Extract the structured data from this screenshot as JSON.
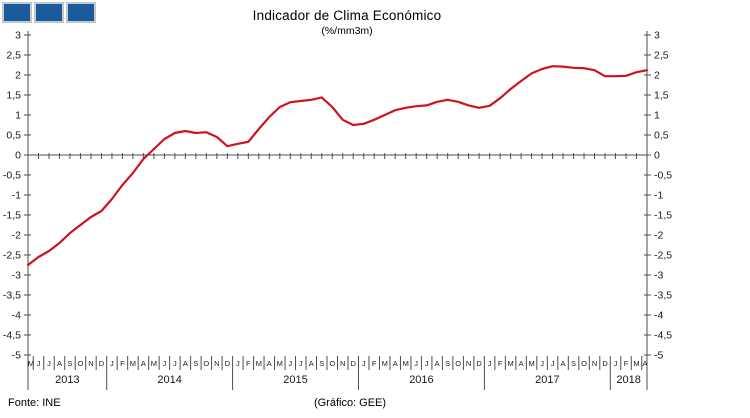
{
  "logo": {
    "square_color": "#1a5b9b",
    "square_border": "#c3c8cc",
    "square_count": 3
  },
  "footer": {
    "source": "Fonte: INE",
    "credit": "(Gráfico:  GEE)"
  },
  "chart_data": {
    "type": "line",
    "title": "Indicador de Clima Económico",
    "subtitle": "(%/mm3m)",
    "xlabel": "",
    "ylabel": "",
    "ylim": [
      -5,
      3
    ],
    "ytick_step": 0.5,
    "y_tick_labels": [
      "3",
      "2,5",
      "2",
      "1,5",
      "1",
      "0,5",
      "0",
      "-0,5",
      "-1",
      "-1,5",
      "-2",
      "-2,5",
      "-3",
      "-3,5",
      "-4",
      "-4,5",
      "-5"
    ],
    "grid": false,
    "legend": false,
    "axis_crosses_at": 0,
    "line_color": "#cc1420",
    "axis_color": "#4d4d4d",
    "years": [
      {
        "label": "2013",
        "months": [
          "M",
          "J",
          "J",
          "A",
          "S",
          "O",
          "N",
          "D"
        ]
      },
      {
        "label": "2014",
        "months": [
          "J",
          "F",
          "M",
          "A",
          "M",
          "J",
          "J",
          "A",
          "S",
          "O",
          "N",
          "D"
        ]
      },
      {
        "label": "2015",
        "months": [
          "J",
          "F",
          "M",
          "A",
          "M",
          "J",
          "J",
          "A",
          "S",
          "O",
          "N",
          "D"
        ]
      },
      {
        "label": "2016",
        "months": [
          "J",
          "F",
          "M",
          "A",
          "M",
          "J",
          "J",
          "A",
          "S",
          "O",
          "N",
          "D"
        ]
      },
      {
        "label": "2017",
        "months": [
          "J",
          "F",
          "M",
          "A",
          "M",
          "J",
          "J",
          "A",
          "S",
          "O",
          "N",
          "D"
        ]
      },
      {
        "label": "2018",
        "months": [
          "J",
          "F",
          "M",
          "A"
        ]
      }
    ],
    "series": [
      {
        "name": "Indicador de Clima Económico",
        "values": [
          -2.75,
          -2.55,
          -2.4,
          -2.2,
          -1.95,
          -1.75,
          -1.55,
          -1.4,
          -1.1,
          -0.75,
          -0.45,
          -0.1,
          0.15,
          0.4,
          0.55,
          0.6,
          0.55,
          0.57,
          0.45,
          0.22,
          0.28,
          0.33,
          0.65,
          0.95,
          1.2,
          1.32,
          1.35,
          1.38,
          1.44,
          1.2,
          0.88,
          0.75,
          0.78,
          0.88,
          1.0,
          1.12,
          1.18,
          1.22,
          1.24,
          1.33,
          1.38,
          1.33,
          1.24,
          1.18,
          1.23,
          1.42,
          1.65,
          1.85,
          2.04,
          2.15,
          2.22,
          2.21,
          2.18,
          2.17,
          2.12,
          1.97,
          1.97,
          1.98,
          2.07,
          2.12
        ]
      }
    ]
  }
}
